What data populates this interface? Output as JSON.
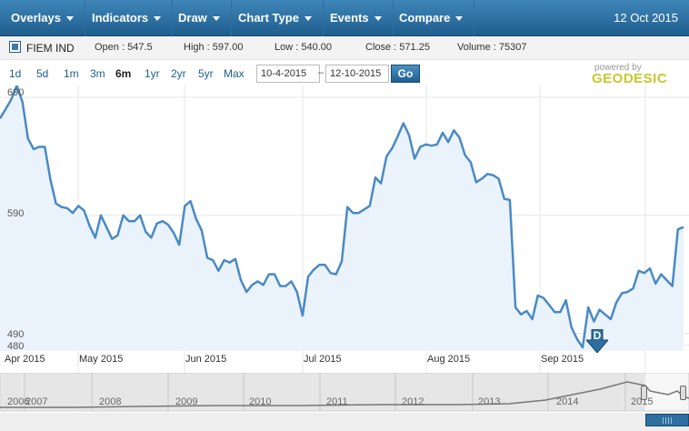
{
  "menu": {
    "items": [
      "Overlays",
      "Indicators",
      "Draw",
      "Chart Type",
      "Events",
      "Compare"
    ],
    "date": "12 Oct 2015"
  },
  "quote": {
    "symbol": "FIEM IND",
    "open": "Open : 547.5",
    "high": "High : 597.00",
    "low": "Low : 540.00",
    "close": "Close : 571.25",
    "volume": "Volume : 75307"
  },
  "range": {
    "buttons": [
      "1d",
      "5d",
      "1m",
      "3m",
      "6m",
      "1yr",
      "2yr",
      "5yr",
      "Max"
    ],
    "active": "6m",
    "from": "10-4-2015",
    "separator": "–",
    "to": "12-10-2015",
    "go_label": "Go"
  },
  "branding": {
    "powered": "powered by",
    "name": "GEODESIC"
  },
  "colors": {
    "accent": "#1f5f8f",
    "line": "#4a8ac4",
    "fill": "#eaf3fb",
    "brand": "#c4c92c"
  },
  "chart_data": {
    "type": "area",
    "series": [
      {
        "values": [
          672,
          680,
          688,
          700,
          686,
          655,
          646,
          648,
          648,
          620,
          600,
          597,
          596,
          592,
          598,
          594,
          581,
          571,
          590,
          580,
          570,
          573,
          590,
          585,
          585,
          590,
          576,
          571,
          583,
          585,
          582,
          575,
          565,
          598,
          602,
          587,
          577,
          554,
          552,
          543,
          552,
          550,
          553,
          535,
          525,
          531,
          534,
          531,
          540,
          540,
          530,
          530,
          534,
          525,
          505,
          538,
          544,
          548,
          548,
          541,
          540,
          551,
          597,
          592,
          592,
          595,
          598,
          622,
          617,
          640,
          647,
          657,
          668,
          658,
          638,
          648,
          650,
          649,
          650,
          660,
          652,
          662,
          656,
          641,
          635,
          618,
          621,
          625,
          624,
          621,
          604,
          603,
          512,
          506,
          509,
          502,
          522,
          520,
          514,
          508,
          508,
          518,
          495,
          485,
          478,
          512,
          500,
          510,
          506,
          502,
          516,
          524,
          525,
          528,
          543,
          541,
          545,
          532,
          540,
          535,
          530,
          578,
          580
        ],
        "color": "#4a8ac4"
      }
    ],
    "ylim": [
      475,
      700
    ],
    "yticks": [
      "690",
      "590",
      "490",
      "480"
    ],
    "ytick_values": [
      690,
      590,
      490,
      480
    ],
    "xticks": [
      "Apr 2015",
      "May 2015",
      "Jun 2015",
      "Jul 2015",
      "Aug 2015",
      "Sep 2015"
    ],
    "event_marker": "D",
    "grid": true
  },
  "navigator": {
    "years": [
      "2006",
      "2007",
      "2008",
      "2009",
      "2010",
      "2011",
      "2012",
      "2013",
      "2014",
      "2015"
    ]
  }
}
